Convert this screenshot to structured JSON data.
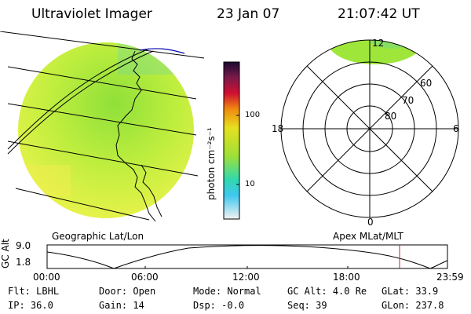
{
  "header": {
    "instrument": "Ultraviolet Imager",
    "date": "23 Jan 07",
    "time": "21:07:42 UT"
  },
  "colorbar": {
    "unit_label": "photon cm⁻²s⁻¹",
    "ticks": [
      "100",
      "10"
    ]
  },
  "polar_plot": {
    "mlt_labels": [
      "12",
      "18",
      "6",
      "0"
    ],
    "lat_labels": [
      "60",
      "70",
      "80"
    ]
  },
  "panel_labels": {
    "geographic": "Geographic Lat/Lon",
    "apex": "Apex MLat/MLT"
  },
  "altitude_plot": {
    "axis_label": "GC Alt",
    "ymax": "9.0",
    "ymin": "1.8",
    "time_ticks": [
      "00:00",
      "06:00",
      "12:00",
      "18:00",
      "23:59"
    ]
  },
  "status": {
    "row1": [
      {
        "label": "Flt:",
        "value": "LBHL"
      },
      {
        "label": "Door:",
        "value": "Open"
      },
      {
        "label": "Mode:",
        "value": "Normal"
      },
      {
        "label": "GC Alt:",
        "value": "4.0 Re"
      },
      {
        "label": "GLat:",
        "value": "33.9"
      }
    ],
    "row2": [
      {
        "label": "IP:",
        "value": "36.0"
      },
      {
        "label": "Gain:",
        "value": "14"
      },
      {
        "label": "Dsp:",
        "value": "-0.0"
      },
      {
        "label": "Seq:",
        "value": "39"
      },
      {
        "label": "GLon:",
        "value": "237.8"
      }
    ]
  },
  "colors": {
    "earth_fill": "#bfee3e",
    "aurora_fill": "#9fe63a",
    "marker": "#c02020"
  }
}
